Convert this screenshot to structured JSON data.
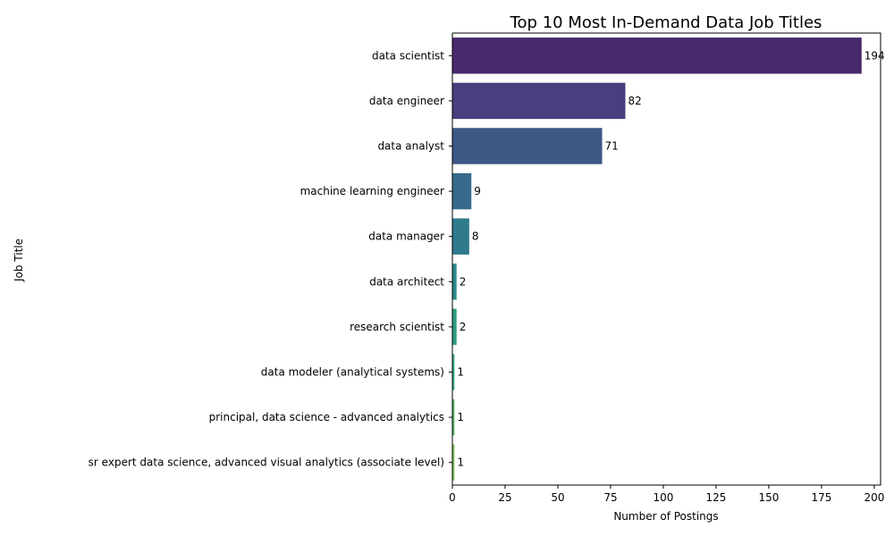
{
  "chart_data": {
    "type": "bar",
    "orientation": "horizontal",
    "title": "Top 10 Most In-Demand Data Job Titles",
    "xlabel": "Number of Postings",
    "ylabel": "Job Title",
    "xlim": [
      0,
      203
    ],
    "xticks": [
      0,
      25,
      50,
      75,
      100,
      125,
      150,
      175,
      200
    ],
    "grid": false,
    "categories": [
      "data scientist",
      "data engineer",
      "data analyst",
      "machine learning engineer",
      "data manager",
      "data architect",
      "research scientist",
      "data modeler (analytical systems)",
      "principal, data science - advanced analytics",
      "sr expert data science, advanced visual analytics (associate level)"
    ],
    "values": [
      194,
      82,
      71,
      9,
      8,
      2,
      2,
      1,
      1,
      1
    ],
    "colors": [
      "#472a6b",
      "#473f7e",
      "#3e5785",
      "#37698a",
      "#2f7a8c",
      "#298b8c",
      "#2d9d86",
      "#3dac7c",
      "#56bc6c",
      "#7fc75b"
    ]
  }
}
